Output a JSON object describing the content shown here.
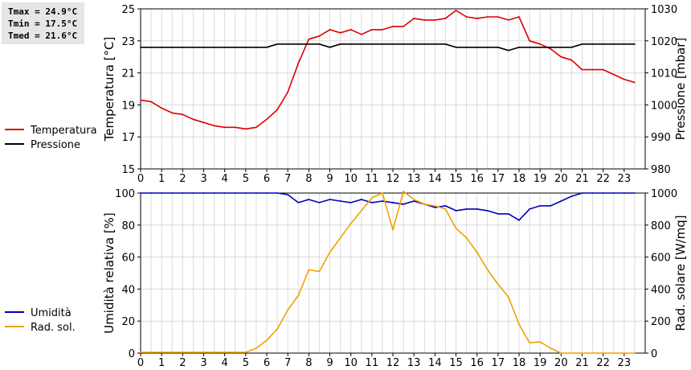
{
  "stats": {
    "tmax": "Tmax = 24.9°C",
    "tmin": "Tmin = 17.5°C",
    "tmed": "Tmed = 21.6°C"
  },
  "chart_data": [
    {
      "type": "line",
      "x": [
        0,
        0.5,
        1,
        1.5,
        2,
        2.5,
        3,
        3.5,
        4,
        4.5,
        5,
        5.5,
        6,
        6.5,
        7,
        7.5,
        8,
        8.5,
        9,
        9.5,
        10,
        10.5,
        11,
        11.5,
        12,
        12.5,
        13,
        13.5,
        14,
        14.5,
        15,
        15.5,
        16,
        16.5,
        17,
        17.5,
        18,
        18.5,
        19,
        19.5,
        20,
        20.5,
        21,
        21.5,
        22,
        22.5,
        23,
        23.5
      ],
      "xlim": [
        0,
        24
      ],
      "xticks": [
        "0",
        "1",
        "2",
        "3",
        "4",
        "5",
        "6",
        "7",
        "8",
        "9",
        "10",
        "11",
        "12",
        "13",
        "14",
        "15",
        "16",
        "17",
        "18",
        "19",
        "20",
        "21",
        "22",
        "23"
      ],
      "left_axis": {
        "label": "Temperatura [°C]",
        "ylim": [
          15,
          25
        ],
        "ticks": [
          15,
          17,
          19,
          21,
          23,
          25
        ]
      },
      "right_axis": {
        "label": "Pressione [mbar]",
        "ylim": [
          980,
          1030
        ],
        "ticks": [
          980,
          990,
          1000,
          1010,
          1020,
          1030
        ]
      },
      "grid": true,
      "legend_position": "left",
      "series": [
        {
          "name": "Temperatura",
          "axis": "left",
          "color": "#dd0000",
          "values": [
            19.3,
            19.2,
            18.8,
            18.5,
            18.4,
            18.1,
            17.9,
            17.7,
            17.6,
            17.6,
            17.5,
            17.6,
            18.1,
            18.7,
            19.8,
            21.6,
            23.1,
            23.3,
            23.7,
            23.5,
            23.7,
            23.4,
            23.7,
            23.7,
            23.9,
            23.9,
            24.4,
            24.3,
            24.3,
            24.4,
            24.9,
            24.5,
            24.4,
            24.5,
            24.5,
            24.3,
            24.5,
            23.0,
            22.8,
            22.5,
            22.0,
            21.8,
            21.2,
            21.2,
            21.2,
            20.9,
            20.6,
            20.4
          ]
        },
        {
          "name": "Pressione",
          "axis": "right",
          "color": "#000000",
          "values": [
            1018,
            1018,
            1018,
            1018,
            1018,
            1018,
            1018,
            1018,
            1018,
            1018,
            1018,
            1018,
            1018,
            1019,
            1019,
            1019,
            1019,
            1019,
            1018,
            1019,
            1019,
            1019,
            1019,
            1019,
            1019,
            1019,
            1019,
            1019,
            1019,
            1019,
            1018,
            1018,
            1018,
            1018,
            1018,
            1017,
            1018,
            1018,
            1018,
            1018,
            1018,
            1018,
            1019,
            1019,
            1019,
            1019,
            1019,
            1019
          ]
        }
      ]
    },
    {
      "type": "line",
      "x": [
        0,
        0.5,
        1,
        1.5,
        2,
        2.5,
        3,
        3.5,
        4,
        4.5,
        5,
        5.5,
        6,
        6.5,
        7,
        7.5,
        8,
        8.5,
        9,
        9.5,
        10,
        10.5,
        11,
        11.5,
        12,
        12.5,
        13,
        13.5,
        14,
        14.5,
        15,
        15.5,
        16,
        16.5,
        17,
        17.5,
        18,
        18.5,
        19,
        19.5,
        20,
        20.5,
        21,
        21.5,
        22,
        22.5,
        23,
        23.5
      ],
      "xlim": [
        0,
        24
      ],
      "xticks": [
        "0",
        "1",
        "2",
        "3",
        "4",
        "5",
        "6",
        "7",
        "8",
        "9",
        "10",
        "11",
        "12",
        "13",
        "14",
        "15",
        "16",
        "17",
        "18",
        "19",
        "20",
        "21",
        "22",
        "23"
      ],
      "left_axis": {
        "label": "Umidità relativa [%]",
        "ylim": [
          0,
          100
        ],
        "ticks": [
          0,
          20,
          40,
          60,
          80,
          100
        ]
      },
      "right_axis": {
        "label": "Rad. solare [W/mq]",
        "ylim": [
          0,
          1000
        ],
        "ticks": [
          0,
          200,
          400,
          600,
          800,
          1000
        ]
      },
      "grid": true,
      "legend_position": "left",
      "series": [
        {
          "name": "Umidità",
          "axis": "left",
          "color": "#0000bb",
          "values": [
            100,
            100,
            100,
            100,
            100,
            100,
            100,
            100,
            100,
            100,
            100,
            100,
            100,
            100,
            99,
            94,
            96,
            94,
            96,
            95,
            94,
            96,
            94,
            95,
            94,
            93,
            95,
            93,
            91,
            92,
            89,
            90,
            90,
            89,
            87,
            87,
            83,
            90,
            92,
            92,
            95,
            98,
            100,
            100,
            100,
            100,
            100,
            100
          ]
        },
        {
          "name": "Rad. sol.",
          "axis": "right",
          "color": "#f0a000",
          "values": [
            5,
            5,
            5,
            5,
            5,
            5,
            5,
            5,
            5,
            5,
            5,
            30,
            80,
            150,
            270,
            360,
            520,
            510,
            630,
            720,
            810,
            890,
            970,
            1000,
            770,
            1010,
            960,
            930,
            920,
            900,
            780,
            720,
            630,
            520,
            430,
            350,
            180,
            65,
            70,
            30,
            0,
            0,
            0,
            0,
            0,
            0,
            0,
            0
          ]
        }
      ]
    }
  ]
}
